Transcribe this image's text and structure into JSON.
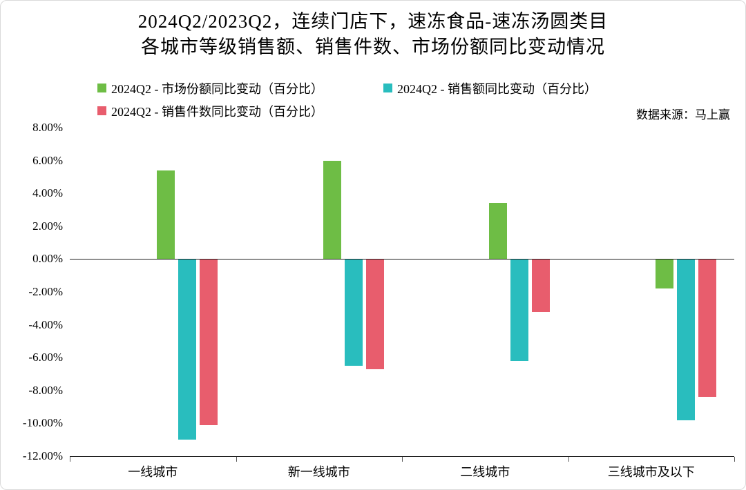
{
  "title": {
    "line1": "2024Q2/2023Q2，连续门店下，速冻食品-速冻汤圆类目",
    "line2": "各城市等级销售额、销售件数、市场份额同比变动情况"
  },
  "source": "数据来源：马上赢",
  "chart_data": {
    "type": "bar",
    "categories": [
      "一线城市",
      "新一线城市",
      "二线城市",
      "三线城市及以下"
    ],
    "series": [
      {
        "name": "2024Q2 - 市场份额同比变动（百分比）",
        "color": "#6EBD45",
        "values": [
          5.4,
          6.0,
          3.4,
          -1.8
        ]
      },
      {
        "name": "2024Q2 - 销售额同比变动（百分比）",
        "color": "#29BDBE",
        "values": [
          -11.0,
          -6.5,
          -6.2,
          -9.8
        ]
      },
      {
        "name": "2024Q2 - 销售件数同比变动（百分比）",
        "color": "#E85D6D",
        "values": [
          -10.1,
          -6.7,
          -3.2,
          -8.4
        ]
      }
    ],
    "ylim": [
      -12,
      8
    ],
    "ytick_step": 2,
    "ytick_labels": [
      "8.00%",
      "6.00%",
      "4.00%",
      "2.00%",
      "0.00%",
      "-2.00%",
      "-4.00%",
      "-6.00%",
      "-8.00%",
      "-10.00%",
      "-12.00%"
    ],
    "legend_position": "top",
    "grid": false
  }
}
